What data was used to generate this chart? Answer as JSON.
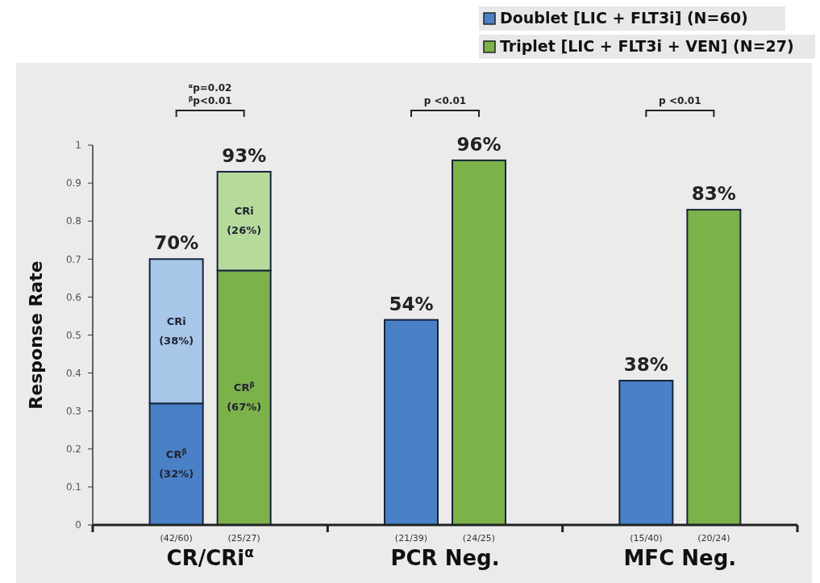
{
  "chart_data": {
    "type": "bar",
    "stacked": true,
    "ylabel": "Response Rate",
    "categories": [
      "(42/60)",
      "(25/27)",
      "(21/39)",
      "(24/25)",
      "(15/40)",
      "(20/24)"
    ],
    "series": [
      {
        "name": "Doublet [LIC + FLT3i] (N=60)",
        "color": "#4a80c6",
        "values": [
          0.32,
          null,
          0.54,
          null,
          0.38,
          null
        ],
        "value_labels": [
          "CR$^{β}$\n(32%)",
          null,
          null,
          null,
          null,
          null
        ]
      },
      {
        "color": "#a8c6e8",
        "values": [
          0.38,
          null,
          null,
          null,
          null,
          null
        ],
        "value_labels": [
          "CRi\n(38%)",
          null,
          null,
          null,
          null,
          null
        ]
      },
      {
        "name": "Triplet [LIC + FLT3i + VEN] (N=27)",
        "color": "#7cb24a",
        "values": [
          null,
          0.67,
          null,
          0.96,
          null,
          0.83
        ],
        "value_labels": [
          null,
          "CR$^{β}$\n(67%)",
          null,
          null,
          null,
          null
        ]
      },
      {
        "color": "#b6da9c",
        "values": [
          null,
          0.26,
          null,
          null,
          null,
          null
        ],
        "value_labels": [
          null,
          "CRi\n(26%)",
          null,
          null,
          null,
          null
        ]
      }
    ],
    "totals": [
      "70%",
      "93%",
      "54%",
      "96%",
      "38%",
      "83%"
    ],
    "ylim": [
      0,
      1
    ],
    "yticks": [
      0,
      0.1,
      0.2,
      0.3,
      0.4,
      0.5,
      0.6,
      0.7,
      0.8,
      0.9,
      1
    ],
    "grid": false,
    "legend": "top right",
    "annotations": [
      "$^{α}$p=0.02\n$^{β}$p<0.01",
      "p <0.01",
      "p <0.01",
      "CR/CRi$^{α}$",
      "PCR Neg.",
      "MFC Neg."
    ]
  }
}
